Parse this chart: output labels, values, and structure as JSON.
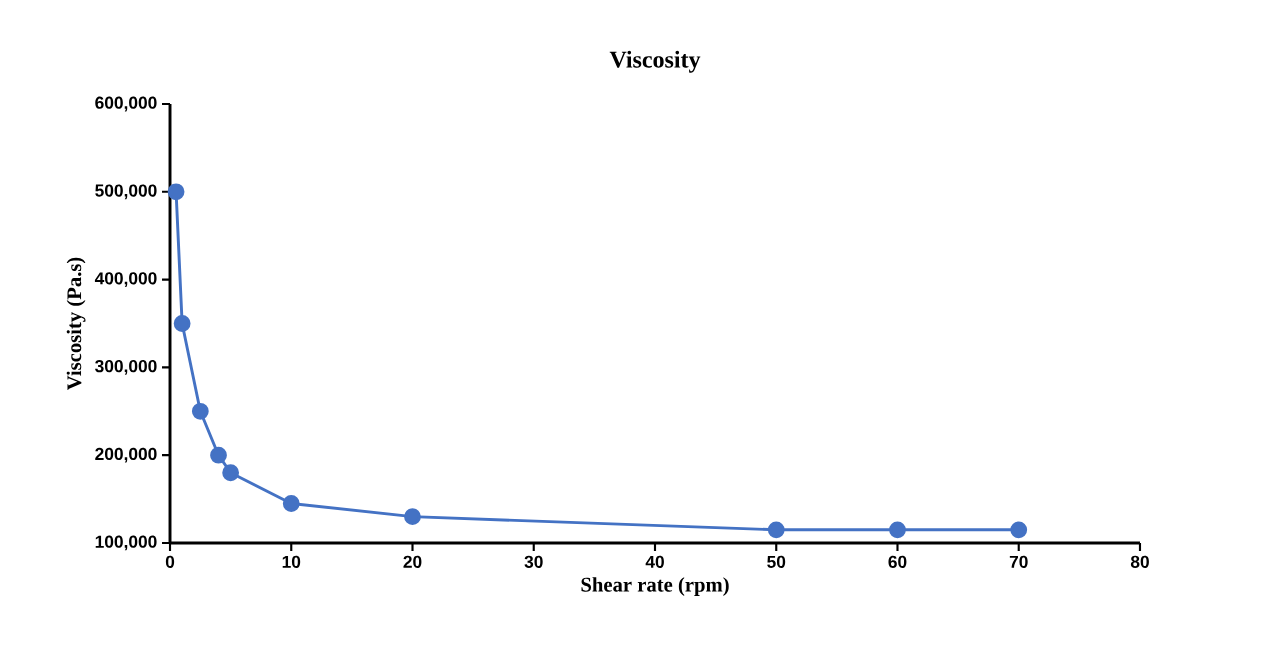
{
  "chart_data": {
    "type": "line",
    "title": "Viscosity",
    "xlabel": "Shear rate (rpm)",
    "ylabel": "Viscosity (Pa.s)",
    "x": [
      0.5,
      1,
      2.5,
      4,
      5,
      10,
      20,
      50,
      60,
      70
    ],
    "series": [
      {
        "color": "#4472c4",
        "values": [
          500000,
          350000,
          250000,
          200000,
          180000,
          145000,
          130000,
          115000,
          115000,
          115000
        ]
      }
    ],
    "xlim": [
      0,
      80
    ],
    "xticks": [
      0,
      10,
      20,
      30,
      40,
      50,
      60,
      70,
      80
    ],
    "ylim": [
      100000,
      600000
    ],
    "yticks": [
      {
        "value": 100000,
        "label": "100,000"
      },
      {
        "value": 200000,
        "label": "200,000"
      },
      {
        "value": 300000,
        "label": "300,000"
      },
      {
        "value": 400000,
        "label": "400,000"
      },
      {
        "value": 500000,
        "label": "500,000"
      },
      {
        "value": 600000,
        "label": "600,000"
      }
    ],
    "grid": false,
    "marker": "circle",
    "line_style": "solid"
  }
}
